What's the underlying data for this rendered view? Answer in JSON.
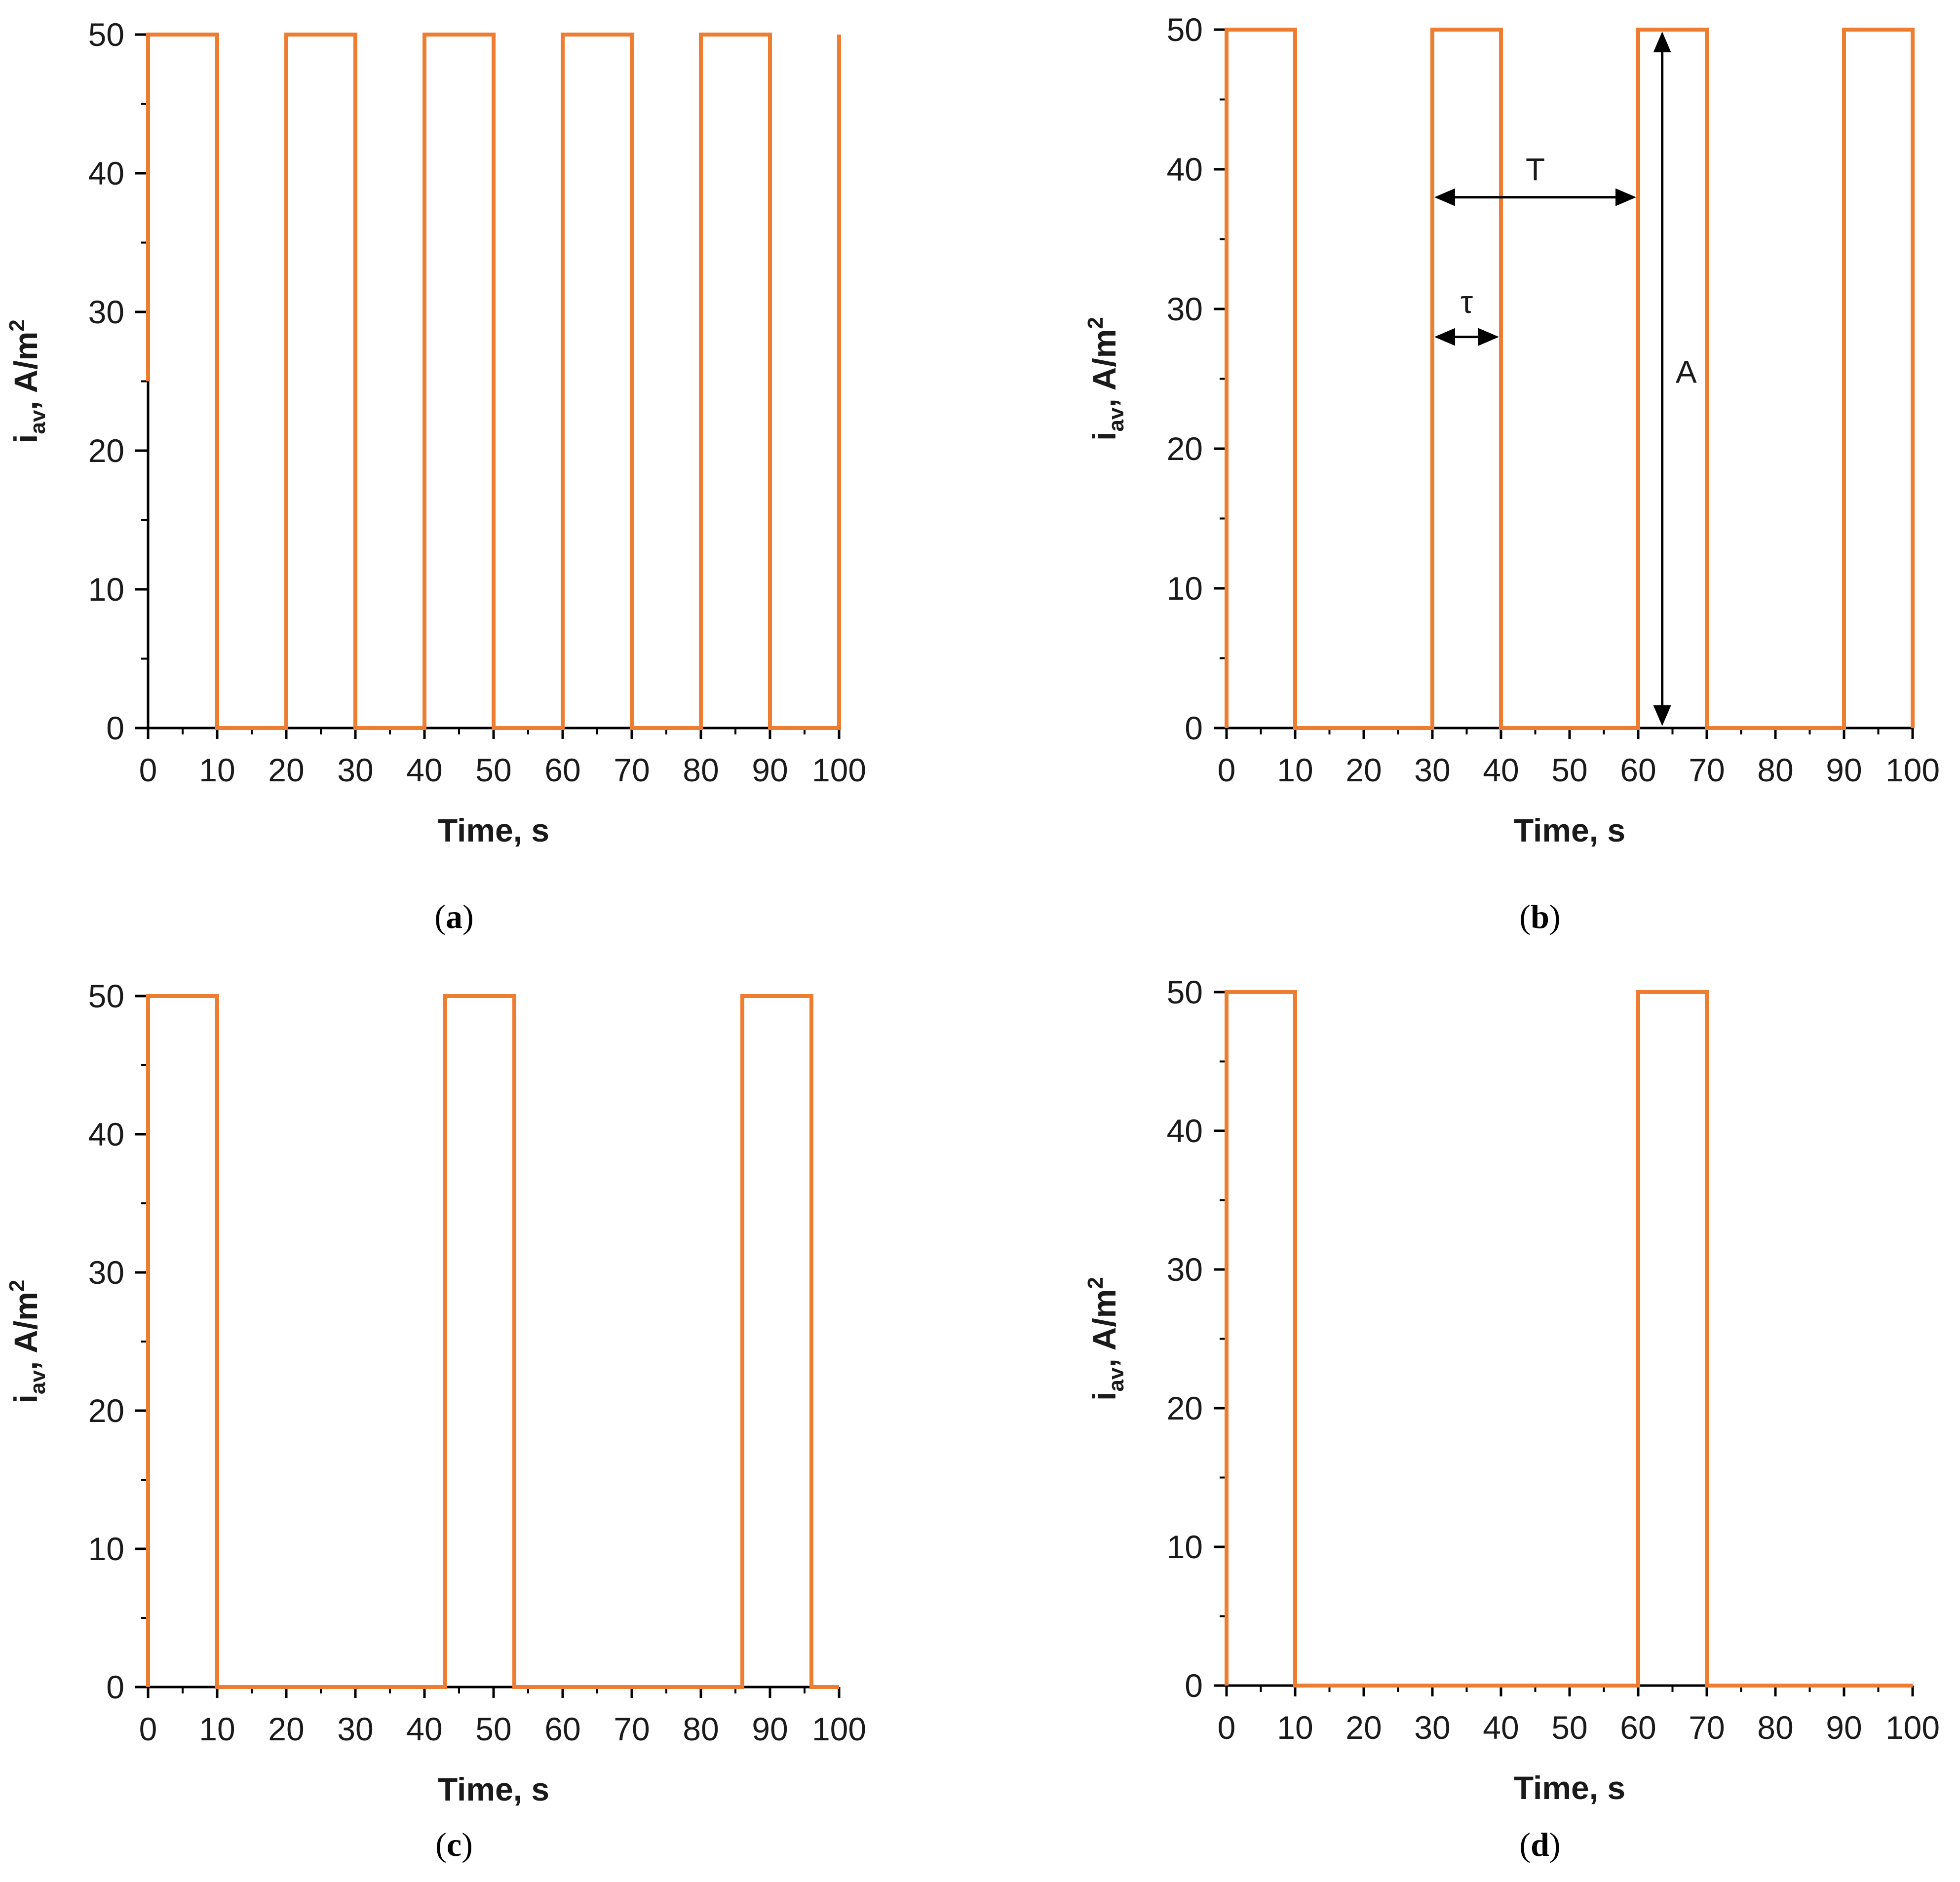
{
  "figure": {
    "name": "current-density-pulse-waveforms"
  },
  "colors": {
    "series": "#ED7D31",
    "axis": "#000000",
    "text": "#1a1a1a"
  },
  "chart_data": [
    {
      "id": "a",
      "type": "line",
      "caption_letter": "a",
      "xlabel": "Time, s",
      "ylabel": {
        "main": "i",
        "subscript": "av",
        "units_prefix": ", ",
        "units_base": "A/m",
        "units_power": "2"
      },
      "xlim": [
        0,
        100
      ],
      "ylim": [
        0,
        50
      ],
      "xticks": [
        0,
        10,
        20,
        30,
        40,
        50,
        60,
        70,
        80,
        90,
        100
      ],
      "yticks": [
        0,
        10,
        20,
        30,
        40,
        50
      ],
      "grid": false,
      "series": [
        {
          "name": "i_av",
          "x": [
            0,
            0,
            10,
            10,
            20,
            20,
            30,
            30,
            40,
            40,
            50,
            50,
            60,
            60,
            70,
            70,
            80,
            80,
            90,
            90,
            100,
            100
          ],
          "y": [
            25,
            50,
            50,
            0,
            0,
            50,
            50,
            0,
            0,
            50,
            50,
            0,
            0,
            50,
            50,
            0,
            0,
            50,
            50,
            0,
            0,
            50
          ]
        }
      ]
    },
    {
      "id": "b",
      "type": "line",
      "caption_letter": "b",
      "xlabel": "Time, s",
      "ylabel": {
        "main": "i",
        "subscript": "av",
        "units_prefix": ", ",
        "units_base": "A/m",
        "units_power": "2"
      },
      "xlim": [
        0,
        100
      ],
      "ylim": [
        0,
        50
      ],
      "xticks": [
        0,
        10,
        20,
        30,
        40,
        50,
        60,
        70,
        80,
        90,
        100
      ],
      "yticks": [
        0,
        10,
        20,
        30,
        40,
        50
      ],
      "grid": false,
      "series": [
        {
          "name": "i_av",
          "x": [
            0,
            0,
            10,
            10,
            30,
            30,
            40,
            40,
            60,
            60,
            70,
            70,
            90,
            90,
            100,
            100
          ],
          "y": [
            0,
            50,
            50,
            0,
            0,
            50,
            50,
            0,
            0,
            50,
            50,
            0,
            0,
            50,
            50,
            0
          ]
        }
      ],
      "annotations": [
        {
          "label": "T",
          "kind": "horizontal-double-arrow",
          "x_from": 30,
          "x_to": 60,
          "y": 38,
          "label_x": 45,
          "label_y": 40
        },
        {
          "label": "τ",
          "kind": "horizontal-double-arrow",
          "x_from": 30,
          "x_to": 40,
          "y": 28,
          "label_x": 35,
          "label_y": 30.5
        },
        {
          "label": "A",
          "kind": "vertical-double-arrow",
          "x": 63.5,
          "y_from": 0,
          "y_to": 50,
          "label_x": 67,
          "label_y": 25.5
        }
      ]
    },
    {
      "id": "c",
      "type": "line",
      "caption_letter": "c",
      "xlabel": "Time, s",
      "ylabel": {
        "main": "i",
        "subscript": "av",
        "units_prefix": ", ",
        "units_base": "A/m",
        "units_power": "2"
      },
      "xlim": [
        0,
        100
      ],
      "ylim": [
        0,
        50
      ],
      "xticks": [
        0,
        10,
        20,
        30,
        40,
        50,
        60,
        70,
        80,
        90,
        100
      ],
      "yticks": [
        0,
        10,
        20,
        30,
        40,
        50
      ],
      "grid": false,
      "series": [
        {
          "name": "i_av",
          "x": [
            0,
            0,
            10,
            10,
            43,
            43,
            53,
            53,
            86,
            86,
            96,
            96,
            100
          ],
          "y": [
            0,
            50,
            50,
            0,
            0,
            50,
            50,
            0,
            0,
            50,
            50,
            0,
            0
          ]
        }
      ]
    },
    {
      "id": "d",
      "type": "line",
      "caption_letter": "d",
      "xlabel": "Time, s",
      "ylabel": {
        "main": "i",
        "subscript": "av",
        "units_prefix": ", ",
        "units_base": "A/m",
        "units_power": "2"
      },
      "xlim": [
        0,
        100
      ],
      "ylim": [
        0,
        50
      ],
      "xticks": [
        0,
        10,
        20,
        30,
        40,
        50,
        60,
        70,
        80,
        90,
        100
      ],
      "yticks": [
        0,
        10,
        20,
        30,
        40,
        50
      ],
      "grid": false,
      "series": [
        {
          "name": "i_av",
          "x": [
            0,
            0,
            10,
            10,
            60,
            60,
            70,
            70,
            100
          ],
          "y": [
            0,
            50,
            50,
            0,
            0,
            50,
            50,
            0,
            0
          ]
        }
      ]
    }
  ]
}
